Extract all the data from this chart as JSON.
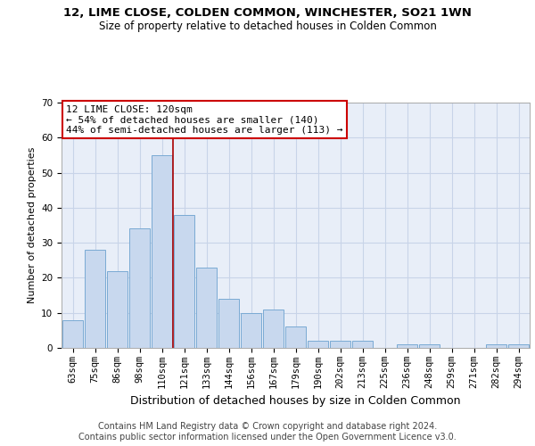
{
  "title": "12, LIME CLOSE, COLDEN COMMON, WINCHESTER, SO21 1WN",
  "subtitle": "Size of property relative to detached houses in Colden Common",
  "xlabel": "Distribution of detached houses by size in Colden Common",
  "ylabel": "Number of detached properties",
  "categories": [
    "63sqm",
    "75sqm",
    "86sqm",
    "98sqm",
    "110sqm",
    "121sqm",
    "133sqm",
    "144sqm",
    "156sqm",
    "167sqm",
    "179sqm",
    "190sqm",
    "202sqm",
    "213sqm",
    "225sqm",
    "236sqm",
    "248sqm",
    "259sqm",
    "271sqm",
    "282sqm",
    "294sqm"
  ],
  "values": [
    8,
    28,
    22,
    34,
    55,
    38,
    23,
    14,
    10,
    11,
    6,
    2,
    2,
    2,
    0,
    1,
    1,
    0,
    0,
    1,
    1
  ],
  "bar_color": "#c8d8ee",
  "bar_edgecolor": "#7aaad4",
  "vline_index": 4.5,
  "vline_color": "#aa0000",
  "annotation_text": "12 LIME CLOSE: 120sqm\n← 54% of detached houses are smaller (140)\n44% of semi-detached houses are larger (113) →",
  "annotation_box_color": "#ffffff",
  "annotation_box_edgecolor": "#cc0000",
  "ylim": [
    0,
    70
  ],
  "yticks": [
    0,
    10,
    20,
    30,
    40,
    50,
    60,
    70
  ],
  "grid_color": "#c8d4e8",
  "background_color": "#e8eef8",
  "footer_line1": "Contains HM Land Registry data © Crown copyright and database right 2024.",
  "footer_line2": "Contains public sector information licensed under the Open Government Licence v3.0.",
  "title_fontsize": 9.5,
  "subtitle_fontsize": 8.5,
  "xlabel_fontsize": 9,
  "ylabel_fontsize": 8,
  "tick_fontsize": 7.5,
  "annotation_fontsize": 8,
  "footer_fontsize": 7
}
